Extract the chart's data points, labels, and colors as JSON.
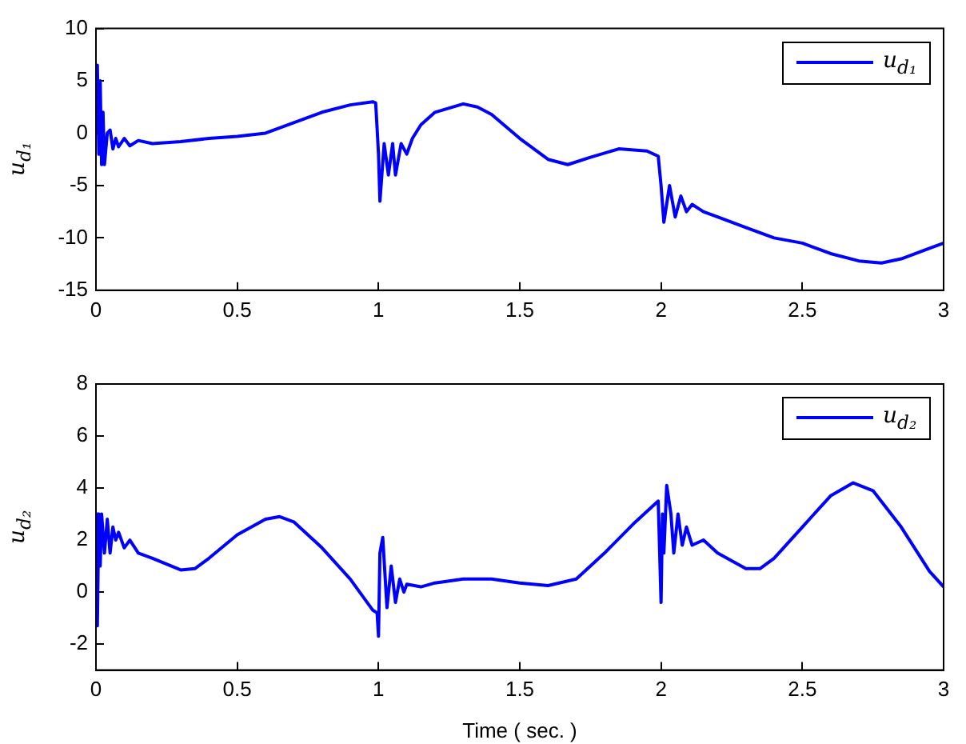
{
  "chart_data": [
    {
      "type": "line",
      "ylabel": "u$_{d₁}$",
      "xlim": [
        0,
        3
      ],
      "xticks": [
        0,
        0.5,
        1,
        1.5,
        2,
        2.5,
        3
      ],
      "ylim": [
        -15,
        10
      ],
      "yticks": [
        -15,
        -10,
        -5,
        0,
        5,
        10
      ],
      "grid": false,
      "legend": "top right",
      "marker": "none",
      "line_style": "solid",
      "series": [
        {
          "name": "u$_{d₁}$",
          "color": "#0000ff",
          "x": [
            0,
            0.005,
            0.01,
            0.015,
            0.02,
            0.025,
            0.03,
            0.04,
            0.05,
            0.06,
            0.07,
            0.08,
            0.1,
            0.12,
            0.15,
            0.2,
            0.3,
            0.4,
            0.5,
            0.6,
            0.7,
            0.8,
            0.9,
            0.98,
            0.99,
            1.0,
            1.005,
            1.02,
            1.035,
            1.05,
            1.06,
            1.08,
            1.1,
            1.12,
            1.15,
            1.2,
            1.3,
            1.35,
            1.4,
            1.5,
            1.6,
            1.67,
            1.75,
            1.85,
            1.95,
            1.99,
            2.0,
            2.01,
            2.03,
            2.05,
            2.07,
            2.09,
            2.11,
            2.15,
            2.2,
            2.3,
            2.4,
            2.5,
            2.6,
            2.7,
            2.78,
            2.85,
            2.95,
            3.0
          ],
          "values": [
            0,
            6.5,
            -2,
            5,
            -3,
            2,
            -3,
            0,
            0.3,
            -1.5,
            -0.5,
            -1.3,
            -0.5,
            -1.2,
            -0.7,
            -1,
            -0.8,
            -0.5,
            -0.3,
            0,
            1,
            2,
            2.7,
            3,
            2.9,
            -2,
            -6.5,
            -1,
            -4,
            -1,
            -4,
            -1,
            -2,
            -0.5,
            0.8,
            2,
            2.8,
            2.5,
            1.8,
            -0.5,
            -2.5,
            -3,
            -2.3,
            -1.5,
            -1.7,
            -2.2,
            -5,
            -8.5,
            -5,
            -8,
            -6,
            -7.5,
            -6.8,
            -7.5,
            -8,
            -9,
            -10,
            -10.5,
            -11.5,
            -12.2,
            -12.4,
            -12,
            -11,
            -10.5
          ]
        }
      ]
    },
    {
      "type": "line",
      "xlabel": "Time ( sec. )",
      "ylabel": "u$_{d₂}$",
      "xlim": [
        0,
        3
      ],
      "xticks": [
        0,
        0.5,
        1,
        1.5,
        2,
        2.5,
        3
      ],
      "ylim": [
        -3,
        8
      ],
      "yticks": [
        -2,
        0,
        2,
        4,
        6,
        8
      ],
      "grid": false,
      "legend": "top right",
      "marker": "none",
      "line_style": "solid",
      "series": [
        {
          "name": "u$_{d₂}$",
          "color": "#0000ff",
          "x": [
            0,
            0.005,
            0.01,
            0.015,
            0.02,
            0.03,
            0.04,
            0.05,
            0.06,
            0.07,
            0.08,
            0.1,
            0.12,
            0.15,
            0.2,
            0.3,
            0.35,
            0.4,
            0.5,
            0.6,
            0.65,
            0.7,
            0.8,
            0.9,
            0.98,
            0.995,
            1.0,
            1.005,
            1.015,
            1.03,
            1.045,
            1.06,
            1.075,
            1.09,
            1.1,
            1.15,
            1.2,
            1.3,
            1.4,
            1.5,
            1.6,
            1.7,
            1.8,
            1.9,
            1.98,
            1.99,
            2.0,
            2.005,
            2.01,
            2.02,
            2.035,
            2.045,
            2.06,
            2.075,
            2.09,
            2.11,
            2.15,
            2.2,
            2.3,
            2.35,
            2.4,
            2.5,
            2.6,
            2.68,
            2.75,
            2.85,
            2.95,
            3.0
          ],
          "values": [
            3,
            -1.3,
            3,
            1,
            3,
            1.5,
            2.8,
            1.5,
            2.5,
            2,
            2.3,
            1.7,
            2,
            1.5,
            1.3,
            0.85,
            0.9,
            1.3,
            2.2,
            2.8,
            2.9,
            2.7,
            1.7,
            0.5,
            -0.7,
            -0.8,
            -1.7,
            1.5,
            2.1,
            -0.6,
            1,
            -0.4,
            0.5,
            0,
            0.3,
            0.2,
            0.35,
            0.5,
            0.5,
            0.35,
            0.25,
            0.5,
            1.5,
            2.6,
            3.4,
            3.5,
            -0.4,
            3,
            1.5,
            4.1,
            3,
            1.5,
            3,
            1.8,
            2.5,
            1.8,
            2,
            1.5,
            0.9,
            0.9,
            1.3,
            2.5,
            3.7,
            4.2,
            3.9,
            2.5,
            0.8,
            0.2
          ]
        }
      ]
    }
  ]
}
